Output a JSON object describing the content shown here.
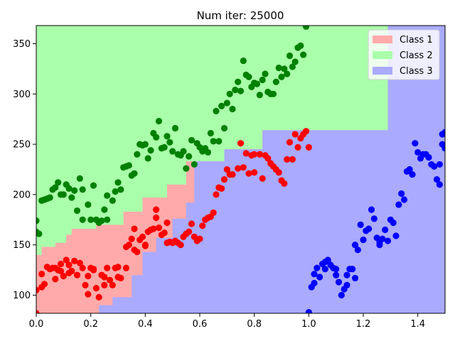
{
  "chart_data": {
    "type": "scatter",
    "title": "Num iter: 25000",
    "xlabel": "",
    "ylabel": "",
    "xlim": [
      0.0,
      1.5
    ],
    "ylim": [
      82,
      368
    ],
    "x_ticks": [
      "0.0",
      "0.2",
      "0.4",
      "0.6",
      "0.8",
      "1.0",
      "1.2",
      "1.4"
    ],
    "x_tick_values": [
      0.0,
      0.2,
      0.4,
      0.6,
      0.8,
      1.0,
      1.2,
      1.4
    ],
    "y_ticks": [
      "100",
      "150",
      "200",
      "250",
      "300",
      "350"
    ],
    "y_tick_values": [
      100,
      150,
      200,
      250,
      300,
      350
    ],
    "grid": false,
    "legend_position": "top-right",
    "background_regions": {
      "class2_upper_boundary": [
        [
          0.0,
          140
        ],
        [
          0.02,
          140
        ],
        [
          0.02,
          148
        ],
        [
          0.07,
          148
        ],
        [
          0.07,
          152
        ],
        [
          0.11,
          152
        ],
        [
          0.11,
          160
        ],
        [
          0.13,
          160
        ],
        [
          0.13,
          166
        ],
        [
          0.22,
          166
        ],
        [
          0.22,
          170
        ],
        [
          0.32,
          170
        ],
        [
          0.32,
          183
        ],
        [
          0.39,
          183
        ],
        [
          0.39,
          197
        ],
        [
          0.48,
          197
        ],
        [
          0.48,
          210
        ],
        [
          0.55,
          210
        ],
        [
          0.55,
          233
        ],
        [
          0.69,
          233
        ],
        [
          0.69,
          245
        ],
        [
          0.83,
          245
        ],
        [
          0.83,
          264
        ],
        [
          1.29,
          264
        ],
        [
          1.29,
          368
        ]
      ],
      "class3_lower_boundary": [
        [
          0.0,
          82
        ],
        [
          0.23,
          82
        ],
        [
          0.23,
          90
        ],
        [
          0.28,
          90
        ],
        [
          0.28,
          98
        ],
        [
          0.35,
          98
        ],
        [
          0.35,
          120
        ],
        [
          0.39,
          120
        ],
        [
          0.39,
          143
        ],
        [
          0.44,
          143
        ],
        [
          0.44,
          157
        ],
        [
          0.5,
          157
        ],
        [
          0.5,
          176
        ],
        [
          0.55,
          176
        ],
        [
          0.55,
          192
        ],
        [
          0.58,
          192
        ],
        [
          0.58,
          233
        ],
        [
          0.69,
          233
        ],
        [
          0.69,
          245
        ],
        [
          0.83,
          245
        ],
        [
          0.83,
          264
        ],
        [
          1.29,
          264
        ],
        [
          1.29,
          368
        ]
      ]
    },
    "series": [
      {
        "name": "Class 1",
        "color": "#ff0000",
        "region_color": "#ffaaaa",
        "points": [
          [
            0.0,
            82
          ],
          [
            0.0,
            105
          ],
          [
            0.02,
            108
          ],
          [
            0.02,
            121
          ],
          [
            0.03,
            111
          ],
          [
            0.04,
            128
          ],
          [
            0.05,
            126
          ],
          [
            0.06,
            127
          ],
          [
            0.07,
            116
          ],
          [
            0.07,
            127
          ],
          [
            0.08,
            125
          ],
          [
            0.09,
            124
          ],
          [
            0.09,
            131
          ],
          [
            0.1,
            119
          ],
          [
            0.11,
            135
          ],
          [
            0.12,
            130
          ],
          [
            0.12,
            122
          ],
          [
            0.13,
            124
          ],
          [
            0.14,
            134
          ],
          [
            0.15,
            120
          ],
          [
            0.16,
            132
          ],
          [
            0.17,
            127
          ],
          [
            0.18,
            110
          ],
          [
            0.19,
            119
          ],
          [
            0.19,
            101
          ],
          [
            0.2,
            127
          ],
          [
            0.21,
            126
          ],
          [
            0.21,
            125
          ],
          [
            0.22,
            107
          ],
          [
            0.23,
            98
          ],
          [
            0.24,
            120
          ],
          [
            0.25,
            110
          ],
          [
            0.25,
            118
          ],
          [
            0.26,
            127
          ],
          [
            0.27,
            115
          ],
          [
            0.28,
            110
          ],
          [
            0.29,
            127
          ],
          [
            0.3,
            118
          ],
          [
            0.3,
            128
          ],
          [
            0.31,
            117
          ],
          [
            0.33,
            127
          ],
          [
            0.33,
            148
          ],
          [
            0.34,
            150
          ],
          [
            0.35,
            156
          ],
          [
            0.36,
            145
          ],
          [
            0.36,
            166
          ],
          [
            0.37,
            143
          ],
          [
            0.38,
            155
          ],
          [
            0.39,
            158
          ],
          [
            0.4,
            150
          ],
          [
            0.4,
            149
          ],
          [
            0.41,
            163
          ],
          [
            0.42,
            165
          ],
          [
            0.43,
            166
          ],
          [
            0.44,
            177
          ],
          [
            0.44,
            185
          ],
          [
            0.45,
            167
          ],
          [
            0.46,
            160
          ],
          [
            0.47,
            162
          ],
          [
            0.48,
            172
          ],
          [
            0.48,
            152
          ],
          [
            0.49,
            153
          ],
          [
            0.5,
            152
          ],
          [
            0.51,
            154
          ],
          [
            0.52,
            152
          ],
          [
            0.53,
            150
          ],
          [
            0.54,
            158
          ],
          [
            0.55,
            161
          ],
          [
            0.56,
            163
          ],
          [
            0.57,
            171
          ],
          [
            0.58,
            158
          ],
          [
            0.59,
            154
          ],
          [
            0.6,
            156
          ],
          [
            0.61,
            169
          ],
          [
            0.62,
            175
          ],
          [
            0.63,
            177
          ],
          [
            0.64,
            178
          ],
          [
            0.65,
            182
          ],
          [
            0.66,
            200
          ],
          [
            0.67,
            207
          ],
          [
            0.68,
            206
          ],
          [
            0.69,
            215
          ],
          [
            0.7,
            225
          ],
          [
            0.71,
            220
          ],
          [
            0.72,
            220
          ],
          [
            0.74,
            226
          ],
          [
            0.75,
            251
          ],
          [
            0.76,
            227
          ],
          [
            0.77,
            241
          ],
          [
            0.78,
            221
          ],
          [
            0.79,
            239
          ],
          [
            0.8,
            222
          ],
          [
            0.8,
            240
          ],
          [
            0.82,
            240
          ],
          [
            0.83,
            216
          ],
          [
            0.84,
            239
          ],
          [
            0.85,
            236
          ],
          [
            0.86,
            231
          ],
          [
            0.87,
            228
          ],
          [
            0.88,
            225
          ],
          [
            0.89,
            222
          ],
          [
            0.9,
            214
          ],
          [
            0.91,
            211
          ],
          [
            0.92,
            235
          ],
          [
            0.93,
            252
          ],
          [
            0.94,
            235
          ],
          [
            0.95,
            260
          ],
          [
            0.96,
            247
          ],
          [
            0.97,
            256
          ],
          [
            0.98,
            260
          ],
          [
            0.99,
            263
          ],
          [
            1.0,
            247
          ]
        ]
      },
      {
        "name": "Class 2",
        "color": "#008000",
        "region_color": "#aaffaa",
        "points": [
          [
            0.0,
            174
          ],
          [
            0.0,
            163
          ],
          [
            0.01,
            161
          ],
          [
            0.02,
            194
          ],
          [
            0.03,
            195
          ],
          [
            0.04,
            196
          ],
          [
            0.05,
            197
          ],
          [
            0.06,
            205
          ],
          [
            0.07,
            207
          ],
          [
            0.08,
            212
          ],
          [
            0.09,
            200
          ],
          [
            0.1,
            200
          ],
          [
            0.11,
            210
          ],
          [
            0.12,
            206
          ],
          [
            0.13,
            197
          ],
          [
            0.14,
            204
          ],
          [
            0.15,
            184
          ],
          [
            0.16,
            216
          ],
          [
            0.17,
            205
          ],
          [
            0.17,
            175
          ],
          [
            0.19,
            190
          ],
          [
            0.2,
            175
          ],
          [
            0.21,
            209
          ],
          [
            0.22,
            175
          ],
          [
            0.23,
            172
          ],
          [
            0.24,
            174
          ],
          [
            0.25,
            185
          ],
          [
            0.26,
            175
          ],
          [
            0.26,
            199
          ],
          [
            0.28,
            194
          ],
          [
            0.29,
            203
          ],
          [
            0.3,
            212
          ],
          [
            0.31,
            205
          ],
          [
            0.32,
            227
          ],
          [
            0.33,
            228
          ],
          [
            0.34,
            229
          ],
          [
            0.35,
            219
          ],
          [
            0.36,
            221
          ],
          [
            0.37,
            240
          ],
          [
            0.38,
            250
          ],
          [
            0.39,
            249
          ],
          [
            0.4,
            250
          ],
          [
            0.41,
            236
          ],
          [
            0.42,
            244
          ],
          [
            0.43,
            261
          ],
          [
            0.44,
            257
          ],
          [
            0.45,
            273
          ],
          [
            0.46,
            246
          ],
          [
            0.47,
            247
          ],
          [
            0.48,
            258
          ],
          [
            0.49,
            252
          ],
          [
            0.5,
            243
          ],
          [
            0.51,
            266
          ],
          [
            0.52,
            240
          ],
          [
            0.53,
            239
          ],
          [
            0.54,
            243
          ],
          [
            0.55,
            226
          ],
          [
            0.56,
            238
          ],
          [
            0.57,
            254
          ],
          [
            0.58,
            230
          ],
          [
            0.59,
            251
          ],
          [
            0.6,
            247
          ],
          [
            0.61,
            243
          ],
          [
            0.62,
            246
          ],
          [
            0.63,
            242
          ],
          [
            0.64,
            261
          ],
          [
            0.65,
            253
          ],
          [
            0.66,
            283
          ],
          [
            0.67,
            253
          ],
          [
            0.68,
            288
          ],
          [
            0.69,
            266
          ],
          [
            0.7,
            291
          ],
          [
            0.71,
            300
          ],
          [
            0.72,
            285
          ],
          [
            0.73,
            304
          ],
          [
            0.74,
            312
          ],
          [
            0.75,
            303
          ],
          [
            0.76,
            333
          ],
          [
            0.77,
            319
          ],
          [
            0.78,
            317
          ],
          [
            0.79,
            307
          ],
          [
            0.8,
            311
          ],
          [
            0.81,
            310
          ],
          [
            0.82,
            299
          ],
          [
            0.83,
            314
          ],
          [
            0.84,
            320
          ],
          [
            0.85,
            302
          ],
          [
            0.86,
            300
          ],
          [
            0.87,
            300
          ],
          [
            0.88,
            312
          ],
          [
            0.89,
            326
          ],
          [
            0.9,
            317
          ],
          [
            0.91,
            325
          ],
          [
            0.92,
            320
          ],
          [
            0.93,
            338
          ],
          [
            0.94,
            327
          ],
          [
            0.95,
            332
          ],
          [
            0.96,
            346
          ],
          [
            0.97,
            348
          ],
          [
            0.98,
            339
          ],
          [
            0.99,
            367
          ]
        ]
      },
      {
        "name": "Class 3",
        "color": "#0000ff",
        "region_color": "#aaaaff",
        "points": [
          [
            1.0,
            83
          ],
          [
            1.01,
            108
          ],
          [
            1.02,
            112
          ],
          [
            1.02,
            121
          ],
          [
            1.03,
            127
          ],
          [
            1.04,
            118
          ],
          [
            1.05,
            131
          ],
          [
            1.06,
            126
          ],
          [
            1.06,
            133
          ],
          [
            1.07,
            135
          ],
          [
            1.08,
            130
          ],
          [
            1.09,
            127
          ],
          [
            1.1,
            120
          ],
          [
            1.1,
            126
          ],
          [
            1.11,
            113
          ],
          [
            1.12,
            100
          ],
          [
            1.13,
            106
          ],
          [
            1.14,
            110
          ],
          [
            1.14,
            120
          ],
          [
            1.15,
            126
          ],
          [
            1.16,
            126
          ],
          [
            1.17,
            117
          ],
          [
            1.17,
            150
          ],
          [
            1.18,
            145
          ],
          [
            1.19,
            170
          ],
          [
            1.2,
            155
          ],
          [
            1.21,
            164
          ],
          [
            1.22,
            166
          ],
          [
            1.23,
            185
          ],
          [
            1.24,
            176
          ],
          [
            1.25,
            157
          ],
          [
            1.26,
            150
          ],
          [
            1.26,
            153
          ],
          [
            1.27,
            156
          ],
          [
            1.28,
            165
          ],
          [
            1.29,
            154
          ],
          [
            1.3,
            175
          ],
          [
            1.31,
            172
          ],
          [
            1.32,
            159
          ],
          [
            1.33,
            190
          ],
          [
            1.34,
            201
          ],
          [
            1.35,
            195
          ],
          [
            1.36,
            223
          ],
          [
            1.37,
            225
          ],
          [
            1.38,
            220
          ],
          [
            1.39,
            251
          ],
          [
            1.4,
            242
          ],
          [
            1.41,
            236
          ],
          [
            1.42,
            240
          ],
          [
            1.43,
            240
          ],
          [
            1.44,
            237
          ],
          [
            1.45,
            230
          ],
          [
            1.46,
            228
          ],
          [
            1.47,
            215
          ],
          [
            1.48,
            210
          ],
          [
            1.48,
            230
          ],
          [
            1.49,
            260
          ],
          [
            1.49,
            250
          ],
          [
            1.5,
            262
          ],
          [
            1.5,
            246
          ]
        ]
      }
    ]
  }
}
